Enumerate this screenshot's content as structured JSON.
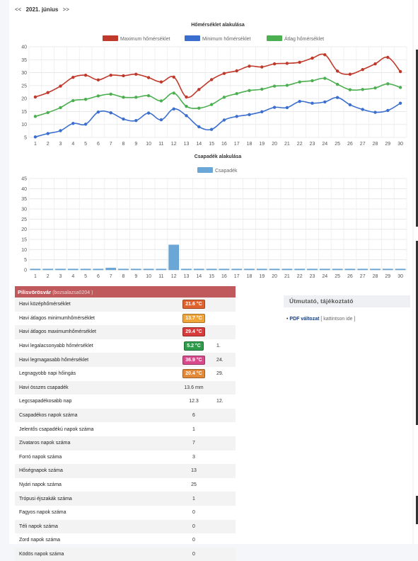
{
  "nav": {
    "prev": "<<",
    "month": "2021. június",
    "next": ">>"
  },
  "chart_data": [
    {
      "type": "line",
      "title": "Hőmérséklet alakulása",
      "x": [
        1,
        2,
        3,
        4,
        5,
        6,
        7,
        8,
        9,
        10,
        11,
        12,
        13,
        14,
        15,
        16,
        17,
        18,
        19,
        20,
        21,
        22,
        23,
        24,
        25,
        26,
        27,
        28,
        29,
        30
      ],
      "ylim": [
        5,
        40
      ],
      "yticks": [
        5,
        10,
        15,
        20,
        25,
        30,
        35,
        40
      ],
      "grid": true,
      "legend": "top-center",
      "series": [
        {
          "name": "Maximum hőmérséklet",
          "color": "#c0392b",
          "values": [
            20.6,
            22.3,
            24.8,
            28.2,
            29.0,
            27.2,
            29.0,
            28.8,
            29.4,
            28.1,
            26.4,
            28.3,
            20.6,
            23.5,
            27.3,
            29.7,
            30.7,
            32.5,
            32.2,
            33.4,
            33.6,
            34.0,
            35.6,
            36.9,
            30.6,
            29.4,
            31.2,
            33.4,
            35.9,
            30.4
          ]
        },
        {
          "name": "Minimum hőmérséklet",
          "color": "#3b6fcf",
          "values": [
            5.2,
            6.5,
            7.6,
            10.4,
            10.1,
            14.8,
            14.5,
            12.1,
            11.5,
            14.4,
            11.8,
            16.0,
            13.4,
            9.1,
            8.1,
            11.7,
            13.1,
            13.8,
            14.9,
            16.6,
            16.5,
            18.9,
            18.2,
            18.7,
            20.4,
            17.6,
            15.8,
            14.7,
            15.4,
            18.2
          ]
        },
        {
          "name": "Átlag hőmérséklet",
          "color": "#4caf50",
          "values": [
            13.1,
            14.6,
            16.5,
            19.2,
            19.7,
            21.0,
            21.7,
            20.5,
            20.5,
            21.1,
            19.1,
            22.1,
            17.0,
            16.3,
            17.7,
            20.5,
            21.9,
            23.1,
            23.6,
            24.8,
            25.1,
            26.4,
            26.9,
            27.8,
            25.5,
            23.4,
            23.5,
            24.1,
            25.7,
            24.3
          ]
        }
      ]
    },
    {
      "type": "bar",
      "title": "Csapadék alakulása",
      "categories": [
        1,
        2,
        3,
        4,
        5,
        6,
        7,
        8,
        9,
        10,
        11,
        12,
        13,
        14,
        15,
        16,
        17,
        18,
        19,
        20,
        21,
        22,
        23,
        24,
        25,
        26,
        27,
        28,
        29,
        30
      ],
      "ylim": [
        0,
        45
      ],
      "yticks": [
        0,
        5,
        10,
        15,
        20,
        25,
        30,
        35,
        40,
        45
      ],
      "grid": true,
      "legend": "top-center",
      "series": [
        {
          "name": "Csapadék",
          "color": "#6aa6d6",
          "values": [
            0,
            0,
            0,
            0,
            0,
            0,
            0.9,
            0,
            0,
            0,
            0.4,
            12.3,
            0,
            0,
            0,
            0,
            0,
            0,
            0,
            0,
            0,
            0,
            0,
            0,
            0,
            0,
            0,
            0,
            0,
            0
          ]
        }
      ]
    }
  ],
  "stats": {
    "station": "Pilisvörösvár",
    "user": "(bozsalazsa0204 )",
    "rows": [
      {
        "label": "Havi középhőmérséklet",
        "value": "21.6 °C",
        "badge": "#e0622f",
        "day": ""
      },
      {
        "label": "Havi átlagos minimumhőmérséklet",
        "value": "13.7 °C",
        "badge": "#efa53a",
        "day": ""
      },
      {
        "label": "Havi átlagos maximumhőmérséklet",
        "value": "29.4 °C",
        "badge": "#d83b3b",
        "day": ""
      },
      {
        "label": "Havi legalacsonyabb hőmérséklet",
        "value": "5.2 °C",
        "badge": "#2e9c4a",
        "day": "1."
      },
      {
        "label": "Havi legmagasabb hőmérséklet",
        "value": "36.9 °C",
        "badge": "#d94a8c",
        "day": "24."
      },
      {
        "label": "Legnagyobb napi hőingás",
        "value": "20.4 °C",
        "badge": "#e28a3a",
        "day": "29."
      },
      {
        "label": "Havi összes csapadék",
        "value": "13.6 mm",
        "badge": "",
        "day": ""
      },
      {
        "label": "Legcsapadékosabb nap",
        "value": "12.3",
        "badge": "",
        "day": "12."
      },
      {
        "label": "Csapadékos napok száma",
        "value": "6",
        "badge": "",
        "day": ""
      },
      {
        "label": "Jelentős csapadékú napok száma",
        "value": "1",
        "badge": "",
        "day": ""
      },
      {
        "label": "Zivataros napok száma",
        "value": "7",
        "badge": "",
        "day": ""
      },
      {
        "label": "Forró napok száma",
        "value": "3",
        "badge": "",
        "day": ""
      },
      {
        "label": "Hőségnapok száma",
        "value": "13",
        "badge": "",
        "day": ""
      },
      {
        "label": "Nyári napok száma",
        "value": "25",
        "badge": "",
        "day": ""
      },
      {
        "label": "Trópusi éjszakák száma",
        "value": "1",
        "badge": "",
        "day": ""
      },
      {
        "label": "Fagyos napok száma",
        "value": "0",
        "badge": "",
        "day": ""
      },
      {
        "label": "Téli napok száma",
        "value": "0",
        "badge": "",
        "day": ""
      },
      {
        "label": "Zord napok száma",
        "value": "0",
        "badge": "",
        "day": ""
      },
      {
        "label": "Ködös napok száma",
        "value": "0",
        "badge": "",
        "day": ""
      }
    ]
  },
  "side": {
    "title": "Útmutató, tájékoztató",
    "pdf_label": "PDF változat",
    "pdf_hint": "[ kattintson ide ]"
  }
}
